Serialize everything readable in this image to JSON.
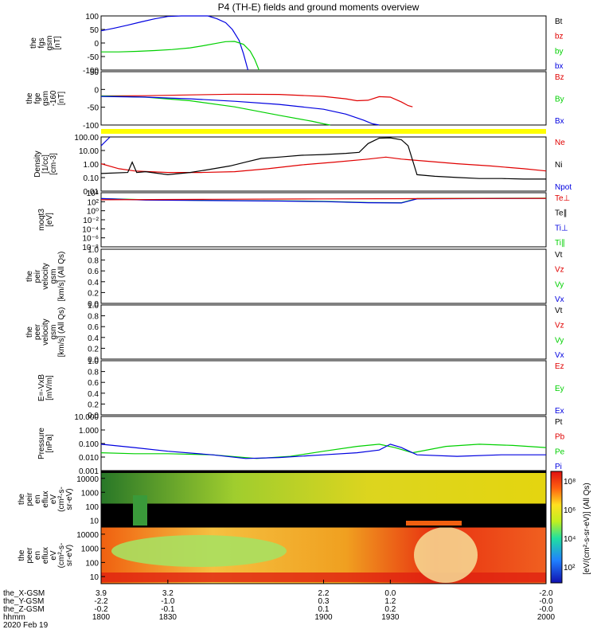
{
  "title": "P4 (TH-E) fields and ground moments overview",
  "colors": {
    "black": "#000000",
    "red": "#e00000",
    "green": "#00d000",
    "blue": "#0000e0",
    "yellow": "#ffff00",
    "dred": "#b00000"
  },
  "chart_data": [
    {
      "id": "fgs",
      "type": "line",
      "ylabel": [
        "the",
        "fgs",
        "gsm",
        "[nT]"
      ],
      "ticks": [
        "100",
        "50",
        "0",
        "-50",
        "-100"
      ],
      "ylim": [
        -100,
        100
      ],
      "legend": [
        {
          "name": "Bt",
          "color": "black"
        },
        {
          "name": "bz",
          "color": "red"
        },
        {
          "name": "by",
          "color": "green"
        },
        {
          "name": "bx",
          "color": "blue"
        }
      ],
      "series": [
        {
          "name": "bx",
          "color": "blue",
          "points": [
            [
              1800,
              45
            ],
            [
              1806,
              55
            ],
            [
              1812,
              66
            ],
            [
              1818,
              78
            ],
            [
              1824,
              89
            ],
            [
              1830,
              98
            ],
            [
              1836,
              103
            ],
            [
              1842,
              105
            ],
            [
              1848,
              100
            ],
            [
              1852,
              90
            ],
            [
              1856,
              75
            ],
            [
              1859,
              50
            ],
            [
              1862,
              10
            ],
            [
              1864,
              -40
            ],
            [
              1866,
              -100
            ]
          ]
        },
        {
          "name": "by",
          "color": "green",
          "points": [
            [
              1800,
              -33
            ],
            [
              1808,
              -33
            ],
            [
              1816,
              -31
            ],
            [
              1824,
              -28
            ],
            [
              1832,
              -24
            ],
            [
              1840,
              -18
            ],
            [
              1846,
              -10
            ],
            [
              1852,
              -1
            ],
            [
              1856,
              5
            ],
            [
              1860,
              6
            ],
            [
              1864,
              -5
            ],
            [
              1867,
              -30
            ],
            [
              1869,
              -60
            ],
            [
              1871,
              -100
            ]
          ]
        }
      ]
    },
    {
      "id": "fge",
      "type": "line",
      "ylabel": [
        "the",
        "fge",
        "gsm",
        "-160",
        "[nT]"
      ],
      "ticks": [
        "50",
        "0",
        "-50",
        "-100"
      ],
      "ylim": [
        -120,
        100
      ],
      "legend": [
        {
          "name": "Bz",
          "color": "red"
        },
        {
          "name": "By",
          "color": "green"
        },
        {
          "name": "Bx",
          "color": "blue"
        }
      ],
      "series": [
        {
          "name": "Bz",
          "color": "red",
          "points": [
            [
              1800,
              0
            ],
            [
              1820,
              1
            ],
            [
              1840,
              4
            ],
            [
              1860,
              7
            ],
            [
              1880,
              6
            ],
            [
              1900,
              -2
            ],
            [
              1910,
              -12
            ],
            [
              1915,
              -20
            ],
            [
              1920,
              -18
            ],
            [
              1925,
              -3
            ],
            [
              1930,
              -5
            ],
            [
              1935,
              -25
            ],
            [
              1938,
              -40
            ],
            [
              1940,
              -45
            ]
          ]
        },
        {
          "name": "By",
          "color": "green",
          "points": [
            [
              1800,
              0
            ],
            [
              1820,
              -5
            ],
            [
              1840,
              -20
            ],
            [
              1860,
              -45
            ],
            [
              1880,
              -80
            ],
            [
              1895,
              -105
            ],
            [
              1900,
              -115
            ],
            [
              1903,
              -120
            ]
          ]
        },
        {
          "name": "Bx",
          "color": "blue",
          "points": [
            [
              1800,
              -2
            ],
            [
              1820,
              -5
            ],
            [
              1840,
              -12
            ],
            [
              1860,
              -22
            ],
            [
              1880,
              -35
            ],
            [
              1900,
              -55
            ],
            [
              1910,
              -75
            ],
            [
              1918,
              -100
            ],
            [
              1922,
              -115
            ],
            [
              1925,
              -120
            ]
          ]
        }
      ]
    },
    {
      "id": "density",
      "type": "line",
      "log": true,
      "ylabel": [
        "Density",
        "[1/cc]",
        "[cm-3]"
      ],
      "ticks": [
        "100.00",
        "10.00",
        "1.00",
        "0.10",
        "0.01"
      ],
      "ylim": [
        0.01,
        200
      ],
      "legend": [
        {
          "name": "Ne",
          "color": "red"
        },
        {
          "name": "Ni",
          "color": "black"
        },
        {
          "name": "Npot",
          "color": "blue"
        }
      ],
      "series": [
        {
          "name": "Ne",
          "color": "red",
          "points": [
            [
              1800,
              1.5
            ],
            [
              1808,
              0.6
            ],
            [
              1815,
              0.4
            ],
            [
              1830,
              0.3
            ],
            [
              1845,
              0.3
            ],
            [
              1860,
              0.35
            ],
            [
              1875,
              0.6
            ],
            [
              1890,
              1.2
            ],
            [
              1905,
              2.0
            ],
            [
              1920,
              3.5
            ],
            [
              1928,
              5.0
            ],
            [
              1935,
              3.5
            ],
            [
              1945,
              2.5
            ],
            [
              1960,
              1.5
            ],
            [
              1975,
              1.0
            ],
            [
              1990,
              0.6
            ],
            [
              2000,
              0.4
            ]
          ]
        },
        {
          "name": "Ni",
          "color": "black",
          "points": [
            [
              1800,
              0.25
            ],
            [
              1812,
              0.3
            ],
            [
              1814,
              2.0
            ],
            [
              1816,
              0.3
            ],
            [
              1820,
              0.35
            ],
            [
              1830,
              0.2
            ],
            [
              1840,
              0.3
            ],
            [
              1848,
              0.5
            ],
            [
              1858,
              1.0
            ],
            [
              1865,
              2.0
            ],
            [
              1872,
              4.0
            ],
            [
              1880,
              5.0
            ],
            [
              1890,
              7.0
            ],
            [
              1900,
              8.0
            ],
            [
              1910,
              10
            ],
            [
              1916,
              12
            ],
            [
              1920,
              60
            ],
            [
              1925,
              160
            ],
            [
              1930,
              170
            ],
            [
              1935,
              120
            ],
            [
              1938,
              40
            ],
            [
              1942,
              0.2
            ],
            [
              1950,
              0.15
            ],
            [
              1960,
              0.12
            ],
            [
              1970,
              0.1
            ],
            [
              1980,
              0.1
            ],
            [
              1990,
              0.09
            ],
            [
              2000,
              0.09
            ]
          ]
        },
        {
          "name": "Npot",
          "color": "blue",
          "points": [
            [
              1800,
              40
            ],
            [
              1804,
              200
            ]
          ]
        }
      ]
    },
    {
      "id": "temp",
      "type": "line",
      "log": true,
      "ylabel": [
        "moqt3",
        "[eV]"
      ],
      "ticks": [
        "10⁴",
        "10²",
        "10⁰",
        "10⁻²",
        "10⁻⁴",
        "10⁻⁶",
        "10⁻⁸"
      ],
      "ylim": [
        1e-09,
        100000.0
      ],
      "legend": [
        {
          "name": "Te⊥",
          "color": "red"
        },
        {
          "name": "Te∥",
          "color": "black"
        },
        {
          "name": "Ti⊥",
          "color": "blue"
        },
        {
          "name": "Ti∥",
          "color": "green"
        }
      ],
      "series": [
        {
          "name": "Ti∥",
          "color": "green",
          "points": [
            [
              1800,
              3000
            ],
            [
              1820,
              1500
            ],
            [
              1850,
              1000
            ],
            [
              1880,
              800
            ],
            [
              1900,
              600
            ],
            [
              1920,
              300
            ],
            [
              1935,
              250
            ],
            [
              1942,
              3000
            ],
            [
              2000,
              4000
            ]
          ]
        },
        {
          "name": "Ti⊥",
          "color": "blue",
          "points": [
            [
              1800,
              3000
            ],
            [
              1820,
              1200
            ],
            [
              1850,
              900
            ],
            [
              1880,
              700
            ],
            [
              1900,
              500
            ],
            [
              1920,
              250
            ],
            [
              1935,
              220
            ],
            [
              1942,
              2500
            ],
            [
              2000,
              3500
            ]
          ]
        },
        {
          "name": "Te⊥",
          "color": "red",
          "points": [
            [
              1800,
              1500
            ],
            [
              1850,
              2000
            ],
            [
              1900,
              2500
            ],
            [
              1950,
              3000
            ],
            [
              2000,
              3500
            ]
          ]
        }
      ]
    },
    {
      "id": "peir_vel",
      "type": "line",
      "ylabel": [
        "the",
        "peir",
        "velocity",
        "gsm",
        "[km/s] (All Qs)"
      ],
      "ticks": [
        "1.0",
        "0.8",
        "0.6",
        "0.4",
        "0.2",
        "0.0"
      ],
      "ylim": [
        0,
        1
      ],
      "legend": [
        {
          "name": "Vt",
          "color": "black"
        },
        {
          "name": "Vz",
          "color": "red"
        },
        {
          "name": "Vy",
          "color": "green"
        },
        {
          "name": "Vx",
          "color": "blue"
        }
      ],
      "series": []
    },
    {
      "id": "peer_vel",
      "type": "line",
      "ylabel": [
        "the",
        "peer",
        "velocity",
        "gsm",
        "[km/s] (All Qs)"
      ],
      "ticks": [
        "1.0",
        "0.8",
        "0.6",
        "0.4",
        "0.2",
        "0.0"
      ],
      "ylim": [
        0,
        1
      ],
      "legend": [
        {
          "name": "Vt",
          "color": "black"
        },
        {
          "name": "Vz",
          "color": "red"
        },
        {
          "name": "Vy",
          "color": "green"
        },
        {
          "name": "Vx",
          "color": "blue"
        }
      ],
      "series": []
    },
    {
      "id": "efield",
      "type": "line",
      "ylabel": [
        "E=-VxB",
        "[mV/m]"
      ],
      "ticks": [
        "1.0",
        "0.8",
        "0.6",
        "0.4",
        "0.2",
        "0.0"
      ],
      "ylim": [
        0,
        1
      ],
      "legend": [
        {
          "name": "Ez",
          "color": "red"
        },
        {
          "name": "Ey",
          "color": "green"
        },
        {
          "name": "Ex",
          "color": "blue"
        }
      ],
      "series": []
    },
    {
      "id": "pressure",
      "type": "line",
      "log": true,
      "ylabel": [
        "Pressure",
        "[nPa]"
      ],
      "ticks": [
        "10.000",
        "1.000",
        "0.100",
        "0.010",
        "0.001"
      ],
      "ylim": [
        0.001,
        30
      ],
      "legend": [
        {
          "name": "Pt",
          "color": "black"
        },
        {
          "name": "Pb",
          "color": "red"
        },
        {
          "name": "Pe",
          "color": "green"
        },
        {
          "name": "Pi",
          "color": "blue"
        }
      ],
      "series": [
        {
          "name": "Pe",
          "color": "green",
          "points": [
            [
              1800,
              0.03
            ],
            [
              1815,
              0.025
            ],
            [
              1830,
              0.025
            ],
            [
              1850,
              0.02
            ],
            [
              1870,
              0.01
            ],
            [
              1885,
              0.015
            ],
            [
              1900,
              0.04
            ],
            [
              1915,
              0.1
            ],
            [
              1925,
              0.15
            ],
            [
              1932,
              0.08
            ],
            [
              1940,
              0.03
            ],
            [
              1955,
              0.1
            ],
            [
              1970,
              0.15
            ],
            [
              1985,
              0.12
            ],
            [
              2000,
              0.08
            ]
          ]
        },
        {
          "name": "Pi",
          "color": "blue",
          "points": [
            [
              1800,
              0.15
            ],
            [
              1815,
              0.08
            ],
            [
              1830,
              0.04
            ],
            [
              1850,
              0.02
            ],
            [
              1865,
              0.01
            ],
            [
              1880,
              0.012
            ],
            [
              1900,
              0.02
            ],
            [
              1915,
              0.03
            ],
            [
              1925,
              0.05
            ],
            [
              1930,
              0.15
            ],
            [
              1935,
              0.08
            ],
            [
              1942,
              0.02
            ],
            [
              1960,
              0.015
            ],
            [
              1980,
              0.02
            ],
            [
              2000,
              0.02
            ]
          ]
        }
      ]
    },
    {
      "id": "peir_spec",
      "type": "heatmap",
      "ylabel": [
        "the",
        "peir",
        "en",
        "eflux",
        "eV",
        "(cm²-s-",
        "sr-eV)"
      ],
      "ticks": [
        "10000",
        "1000",
        "100",
        "10"
      ],
      "ylim": [
        5,
        30000
      ],
      "log": true
    },
    {
      "id": "peer_spec",
      "type": "heatmap",
      "ylabel": [
        "the",
        "peer",
        "en",
        "eflux",
        "eV",
        "(cm²-s-",
        "sr-eV)"
      ],
      "ticks": [
        "10000",
        "1000",
        "100",
        "10"
      ],
      "ylim": [
        5,
        30000
      ],
      "log": true
    }
  ],
  "colorbar": {
    "label": "[eV/(cm²-s-sr-eV)] (All Qs)",
    "ticks": [
      "10⁸",
      "10⁶",
      "10⁴",
      "10²"
    ]
  },
  "xaxis": {
    "range": [
      1800,
      2000
    ],
    "ticks": [
      1800,
      1830,
      1900,
      1930,
      2000
    ],
    "rows": [
      {
        "label": "the_X-GSM",
        "values": [
          "3.9",
          "3.2",
          "2.2",
          "0.0",
          "-2.0"
        ]
      },
      {
        "label": "the_Y-GSM",
        "values": [
          "-2.2",
          "-1.0",
          "0.3",
          "1.2",
          "-0.0"
        ]
      },
      {
        "label": "the_Z-GSM",
        "values": [
          "-0.2",
          "-0.1",
          "0.1",
          "0.2",
          "-0.0"
        ]
      },
      {
        "label": "hhmm",
        "values": [
          "1800",
          "1830",
          "1900",
          "1930",
          "2000"
        ]
      }
    ],
    "date": "2020 Feb 19"
  }
}
